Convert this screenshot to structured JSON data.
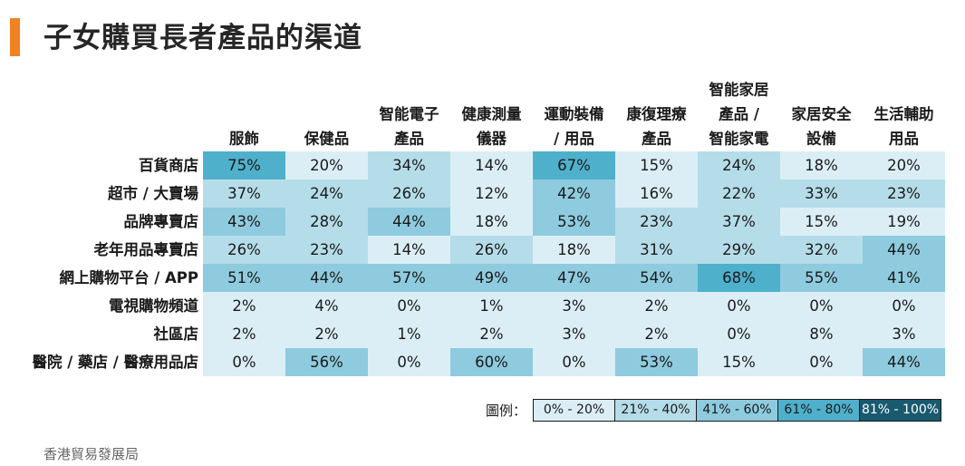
{
  "title": "子女購買長者產品的渠道",
  "source": "香港貿易發展局",
  "colors": {
    "accent": "#f08224",
    "bins": [
      "#dbeef6",
      "#b5dde9",
      "#8ecbde",
      "#4fb0cc",
      "#195a6f"
    ]
  },
  "legend": {
    "label": "圖例：",
    "items": [
      "0% - 20%",
      "21% - 40%",
      "41% - 60%",
      "61% - 80%",
      "81% - 100%"
    ]
  },
  "chart_data": {
    "type": "heatmap",
    "title": "子女購買長者產品的渠道",
    "columns": [
      [
        "服飾"
      ],
      [
        "保健品"
      ],
      [
        "智能電子",
        "產品"
      ],
      [
        "健康測量",
        "儀器"
      ],
      [
        "運動裝備",
        "/ 用品"
      ],
      [
        "康復理療",
        "產品"
      ],
      [
        "智能家居",
        "產品 /",
        "智能家電"
      ],
      [
        "家居安全",
        "設備"
      ],
      [
        "生活輔助",
        "用品"
      ]
    ],
    "rows": [
      "百貨商店",
      "超市 / 大賣場",
      "品牌專賣店",
      "老年用品專賣店",
      "網上購物平台 / APP",
      "電視購物頻道",
      "社區店",
      "醫院 / 藥店 / 醫療用品店"
    ],
    "values": [
      [
        75,
        20,
        34,
        14,
        67,
        15,
        24,
        18,
        20
      ],
      [
        37,
        24,
        26,
        12,
        42,
        16,
        22,
        33,
        23
      ],
      [
        43,
        28,
        44,
        18,
        53,
        23,
        37,
        15,
        19
      ],
      [
        26,
        23,
        14,
        26,
        18,
        31,
        29,
        32,
        44
      ],
      [
        51,
        44,
        57,
        49,
        47,
        54,
        68,
        55,
        41
      ],
      [
        2,
        4,
        0,
        1,
        3,
        2,
        0,
        0,
        0
      ],
      [
        2,
        2,
        1,
        2,
        3,
        2,
        0,
        8,
        3
      ],
      [
        0,
        56,
        0,
        60,
        0,
        53,
        15,
        0,
        44
      ]
    ],
    "unit": "%"
  }
}
